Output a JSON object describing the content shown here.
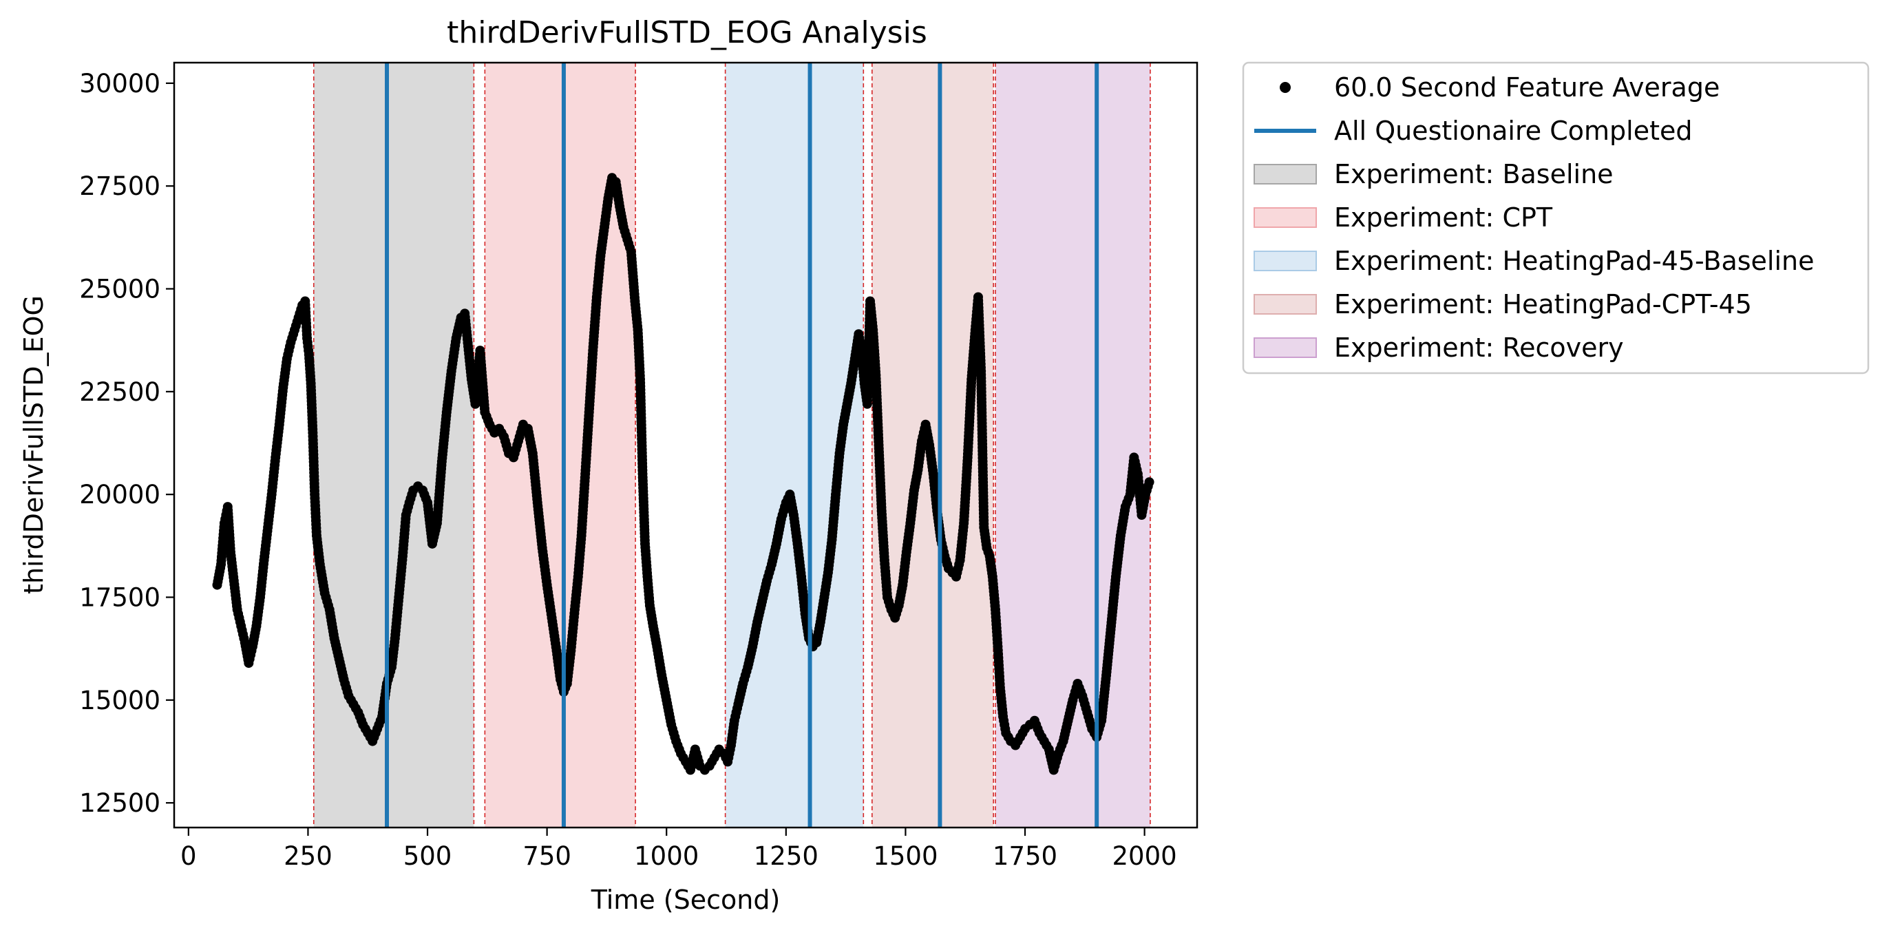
{
  "chart_data": {
    "type": "scatter",
    "title": "thirdDerivFullSTD_EOG Analysis",
    "xlabel": "Time (Second)",
    "ylabel": "thirdDerivFullSTD_EOG",
    "xlim": [
      -30,
      2110
    ],
    "ylim": [
      11900,
      30500
    ],
    "xticks": [
      0,
      250,
      500,
      750,
      1000,
      1250,
      1500,
      1750,
      2000
    ],
    "yticks": [
      12500,
      15000,
      17500,
      20000,
      22500,
      25000,
      27500,
      30000
    ],
    "legend_position": "outside-right",
    "legend": [
      {
        "label": "60.0 Second Feature Average",
        "kind": "marker",
        "color": "#000000"
      },
      {
        "label": "All Questionaire Completed",
        "kind": "line",
        "color": "#1f77b4"
      },
      {
        "label": "Experiment: Baseline",
        "kind": "patch",
        "color": "#a6a6a6"
      },
      {
        "label": "Experiment: CPT",
        "kind": "patch",
        "color": "#f0a5aa"
      },
      {
        "label": "Experiment: HeatingPad-45-Baseline",
        "kind": "patch",
        "color": "#aacbe6"
      },
      {
        "label": "Experiment: HeatingPad-CPT-45",
        "kind": "patch",
        "color": "#deaeae"
      },
      {
        "label": "Experiment: Recovery",
        "kind": "patch",
        "color": "#cc9fcf"
      }
    ],
    "regions": [
      {
        "name": "Experiment: Baseline",
        "start": 262,
        "end": 597,
        "color": "#a6a6a6"
      },
      {
        "name": "Experiment: CPT",
        "start": 620,
        "end": 935,
        "color": "#f0a5aa"
      },
      {
        "name": "Experiment: HeatingPad-45-Baseline",
        "start": 1123,
        "end": 1412,
        "color": "#aacbe6"
      },
      {
        "name": "Experiment: HeatingPad-CPT-45",
        "start": 1430,
        "end": 1684,
        "color": "#deaeae"
      },
      {
        "name": "Experiment: Recovery",
        "start": 1688,
        "end": 2012,
        "color": "#cc9fcf"
      }
    ],
    "questionnaire_completed": [
      415,
      785,
      1300,
      1572,
      1900
    ],
    "series": [
      {
        "name": "60.0 Second Feature Average",
        "points": [
          [
            60,
            17800
          ],
          [
            68,
            18300
          ],
          [
            75,
            19300
          ],
          [
            82,
            19700
          ],
          [
            88,
            18600
          ],
          [
            95,
            17900
          ],
          [
            102,
            17200
          ],
          [
            110,
            16800
          ],
          [
            118,
            16400
          ],
          [
            126,
            15900
          ],
          [
            134,
            16300
          ],
          [
            142,
            16800
          ],
          [
            150,
            17500
          ],
          [
            158,
            18400
          ],
          [
            166,
            19200
          ],
          [
            174,
            20000
          ],
          [
            182,
            20900
          ],
          [
            190,
            21700
          ],
          [
            198,
            22600
          ],
          [
            206,
            23300
          ],
          [
            214,
            23700
          ],
          [
            222,
            24000
          ],
          [
            230,
            24300
          ],
          [
            238,
            24600
          ],
          [
            244,
            24700
          ],
          [
            248,
            23800
          ],
          [
            252,
            23400
          ],
          [
            256,
            22700
          ],
          [
            260,
            21500
          ],
          [
            264,
            20000
          ],
          [
            268,
            19000
          ],
          [
            275,
            18300
          ],
          [
            285,
            17600
          ],
          [
            295,
            17200
          ],
          [
            305,
            16500
          ],
          [
            315,
            16000
          ],
          [
            325,
            15500
          ],
          [
            335,
            15100
          ],
          [
            345,
            14900
          ],
          [
            355,
            14700
          ],
          [
            365,
            14400
          ],
          [
            375,
            14200
          ],
          [
            385,
            14000
          ],
          [
            395,
            14300
          ],
          [
            405,
            14600
          ],
          [
            415,
            15400
          ],
          [
            425,
            15800
          ],
          [
            432,
            16500
          ],
          [
            440,
            17500
          ],
          [
            448,
            18500
          ],
          [
            455,
            19500
          ],
          [
            462,
            19800
          ],
          [
            470,
            20100
          ],
          [
            480,
            20200
          ],
          [
            490,
            20100
          ],
          [
            500,
            19800
          ],
          [
            510,
            18800
          ],
          [
            520,
            19300
          ],
          [
            530,
            20800
          ],
          [
            540,
            22000
          ],
          [
            550,
            23000
          ],
          [
            560,
            23800
          ],
          [
            570,
            24300
          ],
          [
            578,
            24400
          ],
          [
            585,
            23600
          ],
          [
            592,
            22800
          ],
          [
            600,
            22200
          ],
          [
            610,
            23500
          ],
          [
            620,
            22000
          ],
          [
            630,
            21700
          ],
          [
            640,
            21500
          ],
          [
            650,
            21600
          ],
          [
            660,
            21400
          ],
          [
            670,
            21000
          ],
          [
            680,
            20900
          ],
          [
            690,
            21300
          ],
          [
            700,
            21700
          ],
          [
            710,
            21600
          ],
          [
            720,
            21000
          ],
          [
            730,
            19800
          ],
          [
            740,
            18700
          ],
          [
            750,
            17800
          ],
          [
            760,
            17000
          ],
          [
            770,
            16200
          ],
          [
            778,
            15500
          ],
          [
            785,
            15200
          ],
          [
            792,
            15400
          ],
          [
            800,
            16200
          ],
          [
            808,
            17200
          ],
          [
            815,
            18000
          ],
          [
            822,
            19000
          ],
          [
            830,
            20500
          ],
          [
            838,
            22000
          ],
          [
            846,
            23500
          ],
          [
            854,
            24800
          ],
          [
            862,
            25800
          ],
          [
            870,
            26500
          ],
          [
            878,
            27200
          ],
          [
            886,
            27700
          ],
          [
            894,
            27600
          ],
          [
            902,
            27000
          ],
          [
            910,
            26500
          ],
          [
            918,
            26200
          ],
          [
            926,
            25900
          ],
          [
            934,
            24700
          ],
          [
            940,
            24000
          ],
          [
            945,
            22800
          ],
          [
            950,
            20500
          ],
          [
            955,
            18800
          ],
          [
            960,
            18000
          ],
          [
            965,
            17300
          ],
          [
            972,
            16800
          ],
          [
            980,
            16300
          ],
          [
            990,
            15600
          ],
          [
            1000,
            15000
          ],
          [
            1010,
            14400
          ],
          [
            1020,
            14000
          ],
          [
            1030,
            13700
          ],
          [
            1040,
            13500
          ],
          [
            1050,
            13300
          ],
          [
            1060,
            13800
          ],
          [
            1070,
            13400
          ],
          [
            1080,
            13300
          ],
          [
            1090,
            13400
          ],
          [
            1100,
            13600
          ],
          [
            1110,
            13800
          ],
          [
            1120,
            13700
          ],
          [
            1128,
            13500
          ],
          [
            1135,
            13900
          ],
          [
            1142,
            14500
          ],
          [
            1150,
            14900
          ],
          [
            1160,
            15400
          ],
          [
            1170,
            15800
          ],
          [
            1180,
            16300
          ],
          [
            1190,
            16900
          ],
          [
            1200,
            17400
          ],
          [
            1210,
            17900
          ],
          [
            1220,
            18300
          ],
          [
            1230,
            18800
          ],
          [
            1240,
            19400
          ],
          [
            1250,
            19800
          ],
          [
            1258,
            20000
          ],
          [
            1266,
            19500
          ],
          [
            1274,
            18800
          ],
          [
            1282,
            18000
          ],
          [
            1290,
            17100
          ],
          [
            1298,
            16500
          ],
          [
            1306,
            16300
          ],
          [
            1314,
            16400
          ],
          [
            1322,
            16900
          ],
          [
            1330,
            17500
          ],
          [
            1338,
            18100
          ],
          [
            1346,
            18900
          ],
          [
            1354,
            20000
          ],
          [
            1362,
            21000
          ],
          [
            1370,
            21700
          ],
          [
            1378,
            22200
          ],
          [
            1386,
            22700
          ],
          [
            1394,
            23300
          ],
          [
            1402,
            23900
          ],
          [
            1408,
            23500
          ],
          [
            1414,
            22700
          ],
          [
            1420,
            22200
          ],
          [
            1426,
            24700
          ],
          [
            1432,
            24000
          ],
          [
            1438,
            22900
          ],
          [
            1444,
            21200
          ],
          [
            1450,
            19600
          ],
          [
            1456,
            18400
          ],
          [
            1462,
            17500
          ],
          [
            1470,
            17200
          ],
          [
            1478,
            17000
          ],
          [
            1486,
            17300
          ],
          [
            1494,
            17800
          ],
          [
            1502,
            18600
          ],
          [
            1510,
            19300
          ],
          [
            1518,
            20100
          ],
          [
            1526,
            20600
          ],
          [
            1534,
            21300
          ],
          [
            1542,
            21700
          ],
          [
            1550,
            21200
          ],
          [
            1558,
            20500
          ],
          [
            1566,
            19600
          ],
          [
            1574,
            18900
          ],
          [
            1582,
            18500
          ],
          [
            1590,
            18200
          ],
          [
            1598,
            18100
          ],
          [
            1606,
            18000
          ],
          [
            1614,
            18400
          ],
          [
            1622,
            19300
          ],
          [
            1630,
            20900
          ],
          [
            1638,
            22800
          ],
          [
            1646,
            24000
          ],
          [
            1652,
            24800
          ],
          [
            1658,
            23000
          ],
          [
            1664,
            19200
          ],
          [
            1670,
            18700
          ],
          [
            1676,
            18500
          ],
          [
            1682,
            18000
          ],
          [
            1688,
            17200
          ],
          [
            1693,
            16300
          ],
          [
            1698,
            15300
          ],
          [
            1704,
            14600
          ],
          [
            1710,
            14200
          ],
          [
            1720,
            14000
          ],
          [
            1730,
            13900
          ],
          [
            1740,
            14100
          ],
          [
            1750,
            14300
          ],
          [
            1760,
            14400
          ],
          [
            1770,
            14500
          ],
          [
            1780,
            14200
          ],
          [
            1790,
            14000
          ],
          [
            1800,
            13800
          ],
          [
            1810,
            13300
          ],
          [
            1820,
            13700
          ],
          [
            1830,
            14000
          ],
          [
            1840,
            14500
          ],
          [
            1850,
            15000
          ],
          [
            1860,
            15400
          ],
          [
            1870,
            15100
          ],
          [
            1880,
            14700
          ],
          [
            1890,
            14300
          ],
          [
            1900,
            14100
          ],
          [
            1910,
            14500
          ],
          [
            1920,
            15600
          ],
          [
            1930,
            16800
          ],
          [
            1940,
            18000
          ],
          [
            1950,
            19000
          ],
          [
            1960,
            19700
          ],
          [
            1970,
            20000
          ],
          [
            1978,
            20900
          ],
          [
            1986,
            20500
          ],
          [
            1994,
            19500
          ],
          [
            2002,
            20000
          ],
          [
            2010,
            20300
          ]
        ]
      }
    ]
  }
}
